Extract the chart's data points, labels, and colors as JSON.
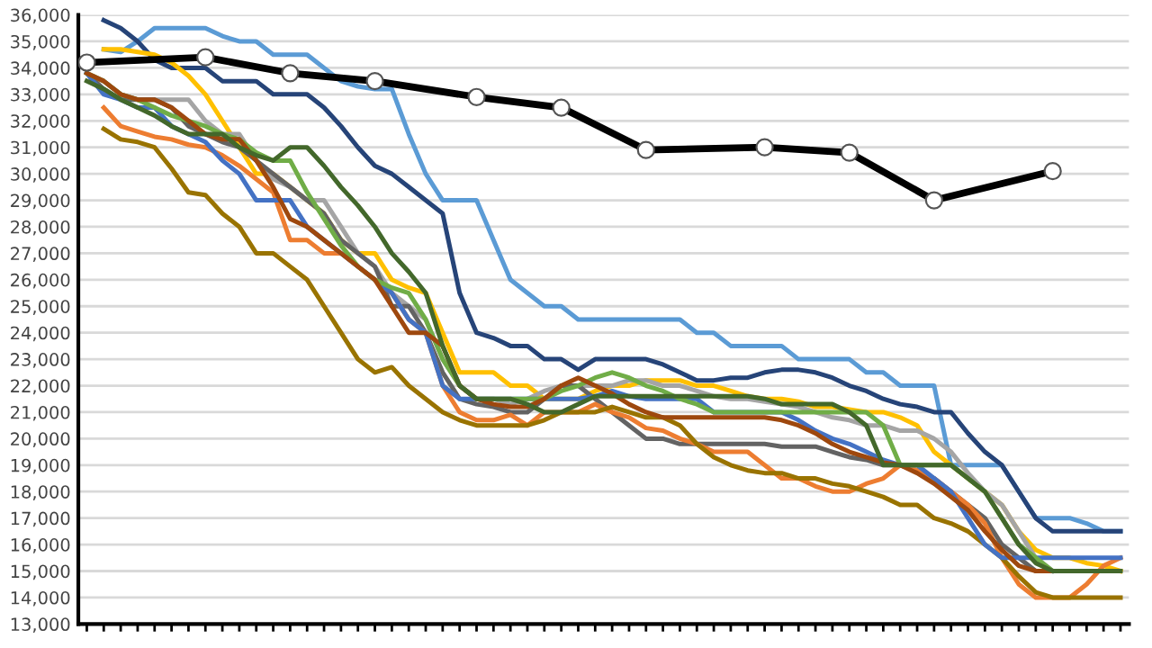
{
  "chart_data": {
    "type": "line",
    "categories": [
      null,
      null,
      null,
      null,
      null,
      null,
      null,
      null,
      null,
      null,
      null,
      null,
      null,
      null,
      null,
      null,
      null,
      null,
      null,
      null,
      null,
      null,
      null,
      null,
      null,
      null,
      null,
      null,
      null,
      null,
      null,
      null,
      null,
      null,
      null,
      null,
      null,
      null,
      null,
      null,
      null,
      null,
      null,
      null,
      null,
      null,
      null,
      null,
      null,
      null,
      null,
      null,
      null,
      null,
      null,
      null,
      null,
      null,
      null,
      null,
      null,
      null
    ],
    "ylim": [
      13000,
      36000
    ],
    "yticks": [
      {
        "value": 13000,
        "label": "13,000"
      },
      {
        "value": 14000,
        "label": "14,000"
      },
      {
        "value": 15000,
        "label": "15,000"
      },
      {
        "value": 16000,
        "label": "16,000"
      },
      {
        "value": 17000,
        "label": "17,000"
      },
      {
        "value": 18000,
        "label": "18,000"
      },
      {
        "value": 19000,
        "label": "19,000"
      },
      {
        "value": 20000,
        "label": "20,000"
      },
      {
        "value": 21000,
        "label": "21,000"
      },
      {
        "value": 22000,
        "label": "22,000"
      },
      {
        "value": 23000,
        "label": "23,000"
      },
      {
        "value": 24000,
        "label": "24,000"
      },
      {
        "value": 25000,
        "label": "25,000"
      },
      {
        "value": 26000,
        "label": "26,000"
      },
      {
        "value": 27000,
        "label": "27,000"
      },
      {
        "value": 28000,
        "label": "28,000"
      },
      {
        "value": 29000,
        "label": "29,000"
      },
      {
        "value": 30000,
        "label": "30,000"
      },
      {
        "value": 31000,
        "label": "31,000"
      },
      {
        "value": 32000,
        "label": "32,000"
      },
      {
        "value": 33000,
        "label": "33,000"
      },
      {
        "value": 34000,
        "label": "34,000"
      },
      {
        "value": 35000,
        "label": "35,000"
      },
      {
        "value": 36000,
        "label": "36,000"
      }
    ],
    "grid": "y",
    "marker": "none",
    "line_style": "solid",
    "series": [
      {
        "color": "#5b9bd5",
        "values": [
          null,
          34700,
          34600,
          35000,
          35500,
          35500,
          35500,
          35500,
          35200,
          35000,
          35000,
          34500,
          34500,
          34500,
          34000,
          33500,
          33300,
          33200,
          33200,
          31500,
          30000,
          29000,
          29000,
          29000,
          27500,
          26000,
          25500,
          25000,
          25000,
          24500,
          24500,
          24500,
          24500,
          24500,
          24500,
          24500,
          24000,
          24000,
          23500,
          23500,
          23500,
          23500,
          23000,
          23000,
          23000,
          23000,
          22500,
          22500,
          22000,
          22000,
          22000,
          19000,
          19000,
          19000,
          19000,
          18000,
          17000,
          17000,
          17000,
          16800,
          16500,
          16500
        ]
      },
      {
        "color": "#264478",
        "values": [
          null,
          35800,
          35500,
          35000,
          34300,
          34000,
          34000,
          34000,
          33500,
          33500,
          33500,
          33000,
          33000,
          33000,
          32500,
          31800,
          31000,
          30300,
          30000,
          29500,
          29000,
          28500,
          25500,
          24000,
          23800,
          23500,
          23500,
          23000,
          23000,
          22600,
          23000,
          23000,
          23000,
          23000,
          22800,
          22500,
          22200,
          22200,
          22300,
          22300,
          22500,
          22600,
          22600,
          22500,
          22300,
          22000,
          21800,
          21500,
          21300,
          21200,
          21000,
          21000,
          20200,
          19500,
          19000,
          18000,
          17000,
          16500,
          16500,
          16500,
          16500,
          16500
        ]
      },
      {
        "color": "#ffc000",
        "values": [
          null,
          34700,
          34700,
          34600,
          34500,
          34200,
          33700,
          33000,
          32000,
          31000,
          30000,
          30000,
          29500,
          29000,
          28500,
          27500,
          27000,
          27000,
          26000,
          25700,
          25500,
          24000,
          22500,
          22500,
          22500,
          22000,
          22000,
          21500,
          21500,
          21500,
          21800,
          22000,
          22000,
          22200,
          22200,
          22200,
          22000,
          22000,
          21800,
          21600,
          21500,
          21500,
          21400,
          21200,
          21200,
          21100,
          21000,
          21000,
          20800,
          20500,
          19500,
          19000,
          18500,
          18000,
          17500,
          16500,
          15800,
          15500,
          15500,
          15300,
          15200,
          15000
        ]
      },
      {
        "color": "#a5a5a5",
        "values": [
          null,
          33500,
          33000,
          32800,
          32800,
          32800,
          32800,
          32000,
          31500,
          31500,
          30500,
          29800,
          29500,
          29000,
          29000,
          28000,
          27000,
          26500,
          25500,
          25000,
          24500,
          23000,
          22000,
          21500,
          21500,
          21300,
          21500,
          21800,
          22000,
          22000,
          22000,
          22000,
          22200,
          22200,
          22000,
          22000,
          21800,
          21600,
          21500,
          21500,
          21400,
          21300,
          21200,
          21000,
          20800,
          20700,
          20500,
          20500,
          20300,
          20300,
          20000,
          19500,
          18700,
          18000,
          17500,
          16500,
          15500,
          15000,
          null,
          null,
          null,
          null
        ]
      },
      {
        "color": "#636363",
        "values": [
          33800,
          33200,
          32800,
          32800,
          32800,
          32500,
          31800,
          31500,
          31200,
          31000,
          30500,
          30000,
          29500,
          29000,
          28500,
          27500,
          27000,
          26500,
          25000,
          25000,
          24000,
          22500,
          21500,
          21300,
          21200,
          21000,
          21000,
          21500,
          22000,
          22000,
          21500,
          21000,
          20500,
          20000,
          20000,
          19800,
          19800,
          19800,
          19800,
          19800,
          19800,
          19700,
          19700,
          19700,
          19500,
          19300,
          19200,
          19000,
          19000,
          18800,
          18500,
          18000,
          17500,
          17000,
          16000,
          15500,
          15000,
          15000,
          15000,
          null,
          null,
          null
        ]
      },
      {
        "color": "#ed7d31",
        "values": [
          null,
          32500,
          31800,
          31600,
          31400,
          31300,
          31100,
          31000,
          30700,
          30300,
          29800,
          29300,
          27500,
          27500,
          27000,
          27000,
          26500,
          26000,
          25500,
          24500,
          24000,
          22000,
          21000,
          20700,
          20700,
          20900,
          20500,
          21000,
          21000,
          21000,
          21300,
          21000,
          20800,
          20400,
          20300,
          20000,
          19800,
          19500,
          19500,
          19500,
          19000,
          18500,
          18500,
          18200,
          18000,
          18000,
          18300,
          18500,
          19000,
          18800,
          18500,
          18000,
          17500,
          16800,
          15500,
          14500,
          14000,
          14000,
          14000,
          14500,
          15200,
          15500
        ]
      },
      {
        "color": "#997300",
        "values": [
          null,
          31700,
          31300,
          31200,
          31000,
          30200,
          29300,
          29200,
          28500,
          28000,
          27000,
          27000,
          26500,
          26000,
          25000,
          24000,
          23000,
          22500,
          22700,
          22000,
          21500,
          21000,
          20700,
          20500,
          20500,
          20500,
          20500,
          20700,
          21000,
          21000,
          21000,
          21200,
          21000,
          20800,
          20800,
          20500,
          19800,
          19300,
          19000,
          18800,
          18700,
          18700,
          18500,
          18500,
          18300,
          18200,
          18000,
          17800,
          17500,
          17500,
          17000,
          16800,
          16500,
          16000,
          15500,
          14800,
          14200,
          14000,
          14000,
          14000,
          14000,
          14000
        ]
      },
      {
        "color": "#4472c4",
        "values": [
          33800,
          33000,
          32800,
          32500,
          32500,
          31800,
          31500,
          31200,
          30500,
          30000,
          29000,
          29000,
          29000,
          28000,
          27500,
          27000,
          26500,
          26000,
          25500,
          24500,
          24000,
          22000,
          21500,
          21500,
          21500,
          21500,
          21500,
          21500,
          21500,
          21500,
          21600,
          21800,
          21600,
          21500,
          21500,
          21500,
          21500,
          21000,
          21000,
          21000,
          21000,
          21000,
          20700,
          20300,
          20000,
          19800,
          19500,
          19200,
          19000,
          19000,
          18500,
          18000,
          17000,
          16000,
          15500,
          15500,
          15500,
          15500,
          15500,
          15500,
          15500,
          15500
        ]
      },
      {
        "color": "#70ad47",
        "values": [
          33800,
          33500,
          33000,
          32800,
          32500,
          32200,
          32000,
          31800,
          31500,
          31300,
          30800,
          30500,
          30500,
          29300,
          28300,
          27300,
          26500,
          26000,
          25700,
          25500,
          24500,
          23000,
          22000,
          21500,
          21500,
          21500,
          21500,
          21500,
          21800,
          22000,
          22300,
          22500,
          22300,
          22000,
          21800,
          21500,
          21300,
          21000,
          21000,
          21000,
          21000,
          21000,
          21000,
          21000,
          21000,
          21000,
          21000,
          20500,
          19000,
          19000,
          19000,
          19000,
          18500,
          18000,
          17000,
          16000,
          15500,
          15000,
          15000,
          null,
          null,
          null
        ]
      },
      {
        "color": "#9e480e",
        "values": [
          33800,
          33500,
          33000,
          32800,
          32800,
          32500,
          32000,
          31500,
          31300,
          31300,
          30500,
          29500,
          28300,
          28000,
          27500,
          27000,
          26500,
          26000,
          25000,
          24000,
          24000,
          23500,
          22000,
          21500,
          21300,
          21200,
          21200,
          21500,
          22000,
          22300,
          22000,
          21700,
          21300,
          21000,
          20800,
          20800,
          20800,
          20800,
          20800,
          20800,
          20800,
          20700,
          20500,
          20200,
          19800,
          19500,
          19300,
          19100,
          19000,
          18700,
          18300,
          17800,
          17300,
          16500,
          15800,
          15200,
          15000,
          15000,
          15000,
          null,
          null,
          null
        ]
      },
      {
        "color": "#43682b",
        "values": [
          33500,
          33200,
          32800,
          32500,
          32200,
          31800,
          31500,
          31500,
          31500,
          31000,
          30700,
          30500,
          31000,
          31000,
          30300,
          29500,
          28800,
          28000,
          27000,
          26300,
          25500,
          23500,
          22000,
          21500,
          21500,
          21500,
          21300,
          21000,
          21000,
          21300,
          21600,
          21600,
          21600,
          21600,
          21600,
          21600,
          21600,
          21600,
          21600,
          21600,
          21500,
          21300,
          21300,
          21300,
          21300,
          21000,
          20500,
          19000,
          19000,
          19000,
          19000,
          19000,
          18500,
          18000,
          17000,
          16000,
          15300,
          15000,
          15000,
          15000,
          15000,
          15000
        ]
      },
      {
        "color": "#000000",
        "marker": "circle",
        "values": [
          34200,
          null,
          null,
          null,
          null,
          null,
          null,
          34400,
          null,
          null,
          null,
          null,
          33800,
          null,
          null,
          null,
          null,
          33500,
          null,
          null,
          null,
          null,
          null,
          32900,
          null,
          null,
          null,
          null,
          32500,
          null,
          null,
          null,
          null,
          30900,
          null,
          null,
          null,
          null,
          null,
          null,
          31000,
          null,
          null,
          null,
          null,
          30800,
          null,
          null,
          null,
          null,
          29000,
          null,
          null,
          null,
          null,
          null,
          null,
          30100,
          null,
          null,
          null,
          null
        ]
      }
    ]
  }
}
